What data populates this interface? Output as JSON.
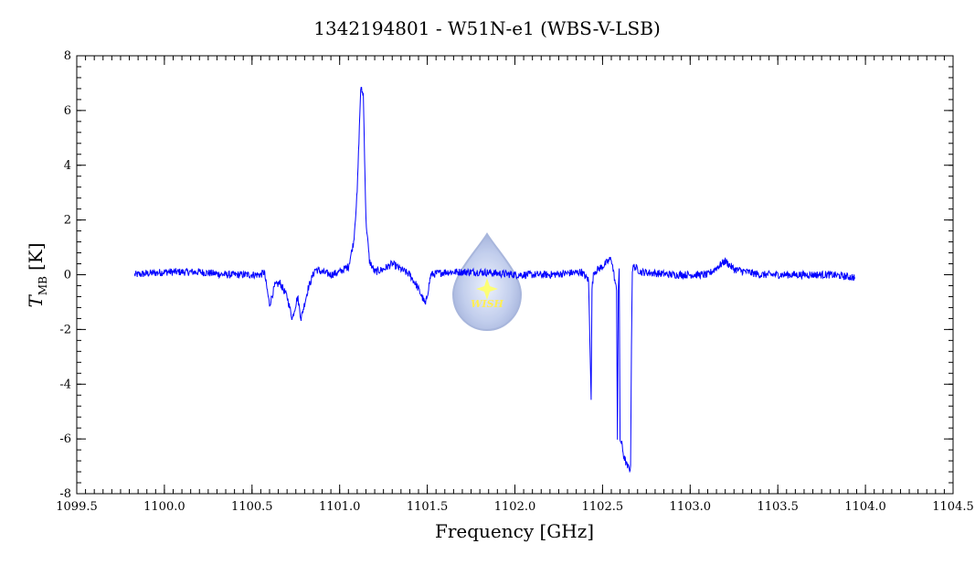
{
  "chart_data": {
    "type": "line",
    "title": "1342194801 - W51N-e1 (WBS-V-LSB)",
    "xlabel": "Frequency [GHz]",
    "ylabel": {
      "main": "T",
      "sub": "MB",
      "unit": "[K]"
    },
    "xlim": [
      1099.5,
      1104.5
    ],
    "ylim": [
      -8,
      8
    ],
    "xticks": [
      "1099.5",
      "1100.0",
      "1100.5",
      "1101.0",
      "1101.5",
      "1102.0",
      "1102.5",
      "1103.0",
      "1103.5",
      "1104.0",
      "1104.5"
    ],
    "yticks": [
      "-8",
      "-6",
      "-4",
      "-2",
      "0",
      "2",
      "4",
      "6",
      "8"
    ],
    "grid": false,
    "line_color": "#0000ff",
    "logo": {
      "text": "WISH"
    },
    "series": [
      {
        "x": [
          1099.83,
          1100.0,
          1100.2,
          1100.35,
          1100.45,
          1100.55,
          1100.57,
          1100.6,
          1100.63,
          1100.66,
          1100.7,
          1100.73,
          1100.76,
          1100.78,
          1100.82,
          1100.86,
          1100.9,
          1100.95,
          1101.0,
          1101.05,
          1101.08,
          1101.1,
          1101.12,
          1101.135,
          1101.15,
          1101.17,
          1101.2,
          1101.25,
          1101.3,
          1101.35,
          1101.4,
          1101.44,
          1101.47,
          1101.49,
          1101.52,
          1101.6,
          1101.8,
          1102.0,
          1102.2,
          1102.38,
          1102.42,
          1102.43,
          1102.435,
          1102.44,
          1102.45,
          1102.5,
          1102.55,
          1102.58,
          1102.585,
          1102.59,
          1102.595,
          1102.6,
          1102.61,
          1102.62,
          1102.64,
          1102.66,
          1102.665,
          1102.67,
          1102.68,
          1102.72,
          1102.9,
          1103.1,
          1103.2,
          1103.25,
          1103.4,
          1103.6,
          1103.8,
          1103.94
        ],
        "y": [
          0.0,
          0.1,
          0.1,
          0.0,
          0.0,
          0.0,
          0.1,
          -1.1,
          -0.4,
          -0.3,
          -0.8,
          -1.6,
          -0.8,
          -1.6,
          -0.5,
          0.2,
          0.1,
          0.0,
          0.1,
          0.3,
          1.2,
          3.0,
          6.8,
          6.6,
          2.0,
          0.5,
          0.1,
          0.2,
          0.4,
          0.2,
          0.0,
          -0.4,
          -0.8,
          -1.1,
          0.0,
          0.1,
          0.1,
          0.0,
          0.0,
          0.1,
          -0.2,
          -3.0,
          -4.5,
          -0.5,
          0.1,
          0.3,
          0.6,
          -0.6,
          -6.0,
          -0.5,
          0.1,
          -6.0,
          -6.2,
          -6.6,
          -7.0,
          -7.1,
          -2.5,
          0.2,
          0.3,
          0.1,
          0.0,
          0.0,
          0.5,
          0.2,
          0.0,
          0.0,
          0.0,
          -0.1
        ]
      }
    ]
  }
}
